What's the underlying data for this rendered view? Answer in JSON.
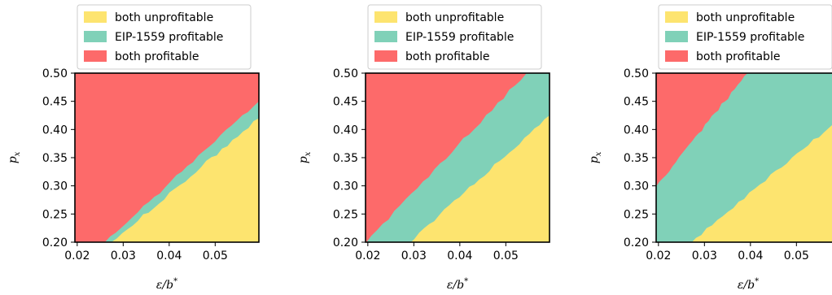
{
  "colors": {
    "both_unprofitable": "#fde46f",
    "eip1559_profitable": "#80d1b8",
    "both_profitable": "#fd6a6a",
    "frame": "#000000",
    "legend_border": "#cccccc"
  },
  "chart_data": [
    {
      "type": "area",
      "title": "",
      "xlabel": "ε/b*",
      "ylabel": "p_x",
      "xlim": [
        0.0195,
        0.0595
      ],
      "ylim": [
        0.2,
        0.5
      ],
      "xticks": [
        "0.02",
        "0.03",
        "0.04",
        "0.05"
      ],
      "yticks": [
        "0.20",
        "0.25",
        "0.30",
        "0.35",
        "0.40",
        "0.45",
        "0.50"
      ],
      "legend_position": "top",
      "legend": [
        "both unprofitable",
        "EIP-1559 profitable",
        "both profitable"
      ],
      "boundaries": {
        "both_unprofitable_upper": [
          [
            0.0275,
            0.2
          ],
          [
            0.0595,
            0.42
          ]
        ],
        "both_profitable_lower": [
          [
            0.026,
            0.2
          ],
          [
            0.0595,
            0.45
          ]
        ]
      }
    },
    {
      "type": "area",
      "title": "",
      "xlabel": "ε/b*",
      "ylabel": "p_x",
      "xlim": [
        0.0195,
        0.0595
      ],
      "ylim": [
        0.2,
        0.5
      ],
      "xticks": [
        "0.02",
        "0.03",
        "0.04",
        "0.05"
      ],
      "yticks": [
        "0.20",
        "0.25",
        "0.30",
        "0.35",
        "0.40",
        "0.45",
        "0.50"
      ],
      "legend_position": "top",
      "legend": [
        "both unprofitable",
        "EIP-1559 profitable",
        "both profitable"
      ],
      "boundaries": {
        "both_unprofitable_upper": [
          [
            0.029,
            0.2
          ],
          [
            0.0595,
            0.425
          ]
        ],
        "both_profitable_lower": [
          [
            0.0195,
            0.2
          ],
          [
            0.0545,
            0.5
          ]
        ]
      }
    },
    {
      "type": "area",
      "title": "",
      "xlabel": "ε/b*",
      "ylabel": "p_x",
      "xlim": [
        0.0195,
        0.0595
      ],
      "ylim": [
        0.2,
        0.5
      ],
      "xticks": [
        "0.02",
        "0.03",
        "0.04",
        "0.05"
      ],
      "yticks": [
        "0.20",
        "0.25",
        "0.30",
        "0.35",
        "0.40",
        "0.45",
        "0.50"
      ],
      "legend_position": "top",
      "legend": [
        "both unprofitable",
        "EIP-1559 profitable",
        "both profitable"
      ],
      "boundaries": {
        "both_unprofitable_upper": [
          [
            0.027,
            0.2
          ],
          [
            0.0595,
            0.42
          ]
        ],
        "both_profitable_lower": [
          [
            0.0195,
            0.3
          ],
          [
            0.0394,
            0.5
          ]
        ]
      }
    }
  ]
}
